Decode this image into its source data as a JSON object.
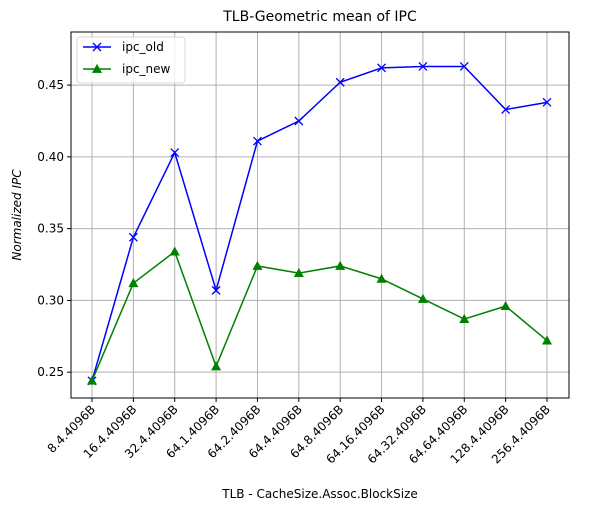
{
  "chart_data": {
    "type": "line",
    "title": "TLB-Geometric mean of IPC",
    "xlabel": "TLB - CacheSize.Assoc.BlockSize",
    "ylabel": "Normalized  IPC",
    "categories": [
      "8.4.4096B",
      "16.4.4096B",
      "32.4.4096B",
      "64.1.4096B",
      "64.2.4096B",
      "64.4.4096B",
      "64.8.4096B",
      "64.16.4096B",
      "64.32.4096B",
      "64.64.4096B",
      "128.4.4096B",
      "256.4.4096B"
    ],
    "ylim": [
      0.232,
      0.487
    ],
    "yticks": [
      0.25,
      0.3,
      0.35,
      0.4,
      0.45
    ],
    "ytick_labels": [
      "0.25",
      "0.30",
      "0.35",
      "0.40",
      "0.45"
    ],
    "grid": true,
    "legend_position": "top-left",
    "series": [
      {
        "name": "ipc_old",
        "color": "#0000ff",
        "marker": "x",
        "values": [
          0.244,
          0.344,
          0.403,
          0.307,
          0.411,
          0.425,
          0.452,
          0.462,
          0.463,
          0.463,
          0.433,
          0.438
        ]
      },
      {
        "name": "ipc_new",
        "color": "#008000",
        "marker": "triangle",
        "values": [
          0.244,
          0.312,
          0.334,
          0.254,
          0.324,
          0.319,
          0.324,
          0.315,
          0.301,
          0.287,
          0.296,
          0.272
        ]
      }
    ]
  }
}
